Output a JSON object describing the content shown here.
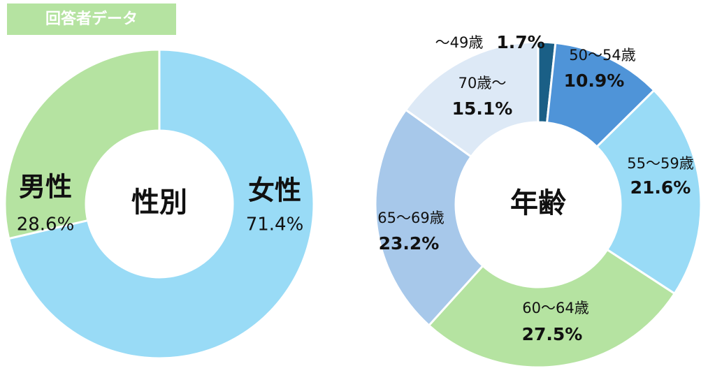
{
  "header": {
    "title": "回答者データ"
  },
  "chart_data": [
    {
      "type": "donut",
      "center_label": "性別",
      "categories": [
        "女性",
        "男性"
      ],
      "values": [
        71.4,
        28.6
      ],
      "value_labels": [
        "71.4%",
        "28.6%"
      ],
      "colors": [
        "#99dbf6",
        "#b5e3a1"
      ]
    },
    {
      "type": "donut",
      "center_label": "年齢",
      "categories": [
        "～49歳",
        "50～54歳",
        "55～59歳",
        "60～64歳",
        "65～69歳",
        "70歳～"
      ],
      "values": [
        1.7,
        10.9,
        21.6,
        27.5,
        23.2,
        15.1
      ],
      "value_labels": [
        "1.7%",
        "10.9%",
        "21.6%",
        "27.5%",
        "23.2%",
        "15.1%"
      ],
      "colors": [
        "#1a5f86",
        "#4f94d8",
        "#99dbf6",
        "#b5e3a1",
        "#a7c8ea",
        "#dde9f6"
      ]
    }
  ]
}
